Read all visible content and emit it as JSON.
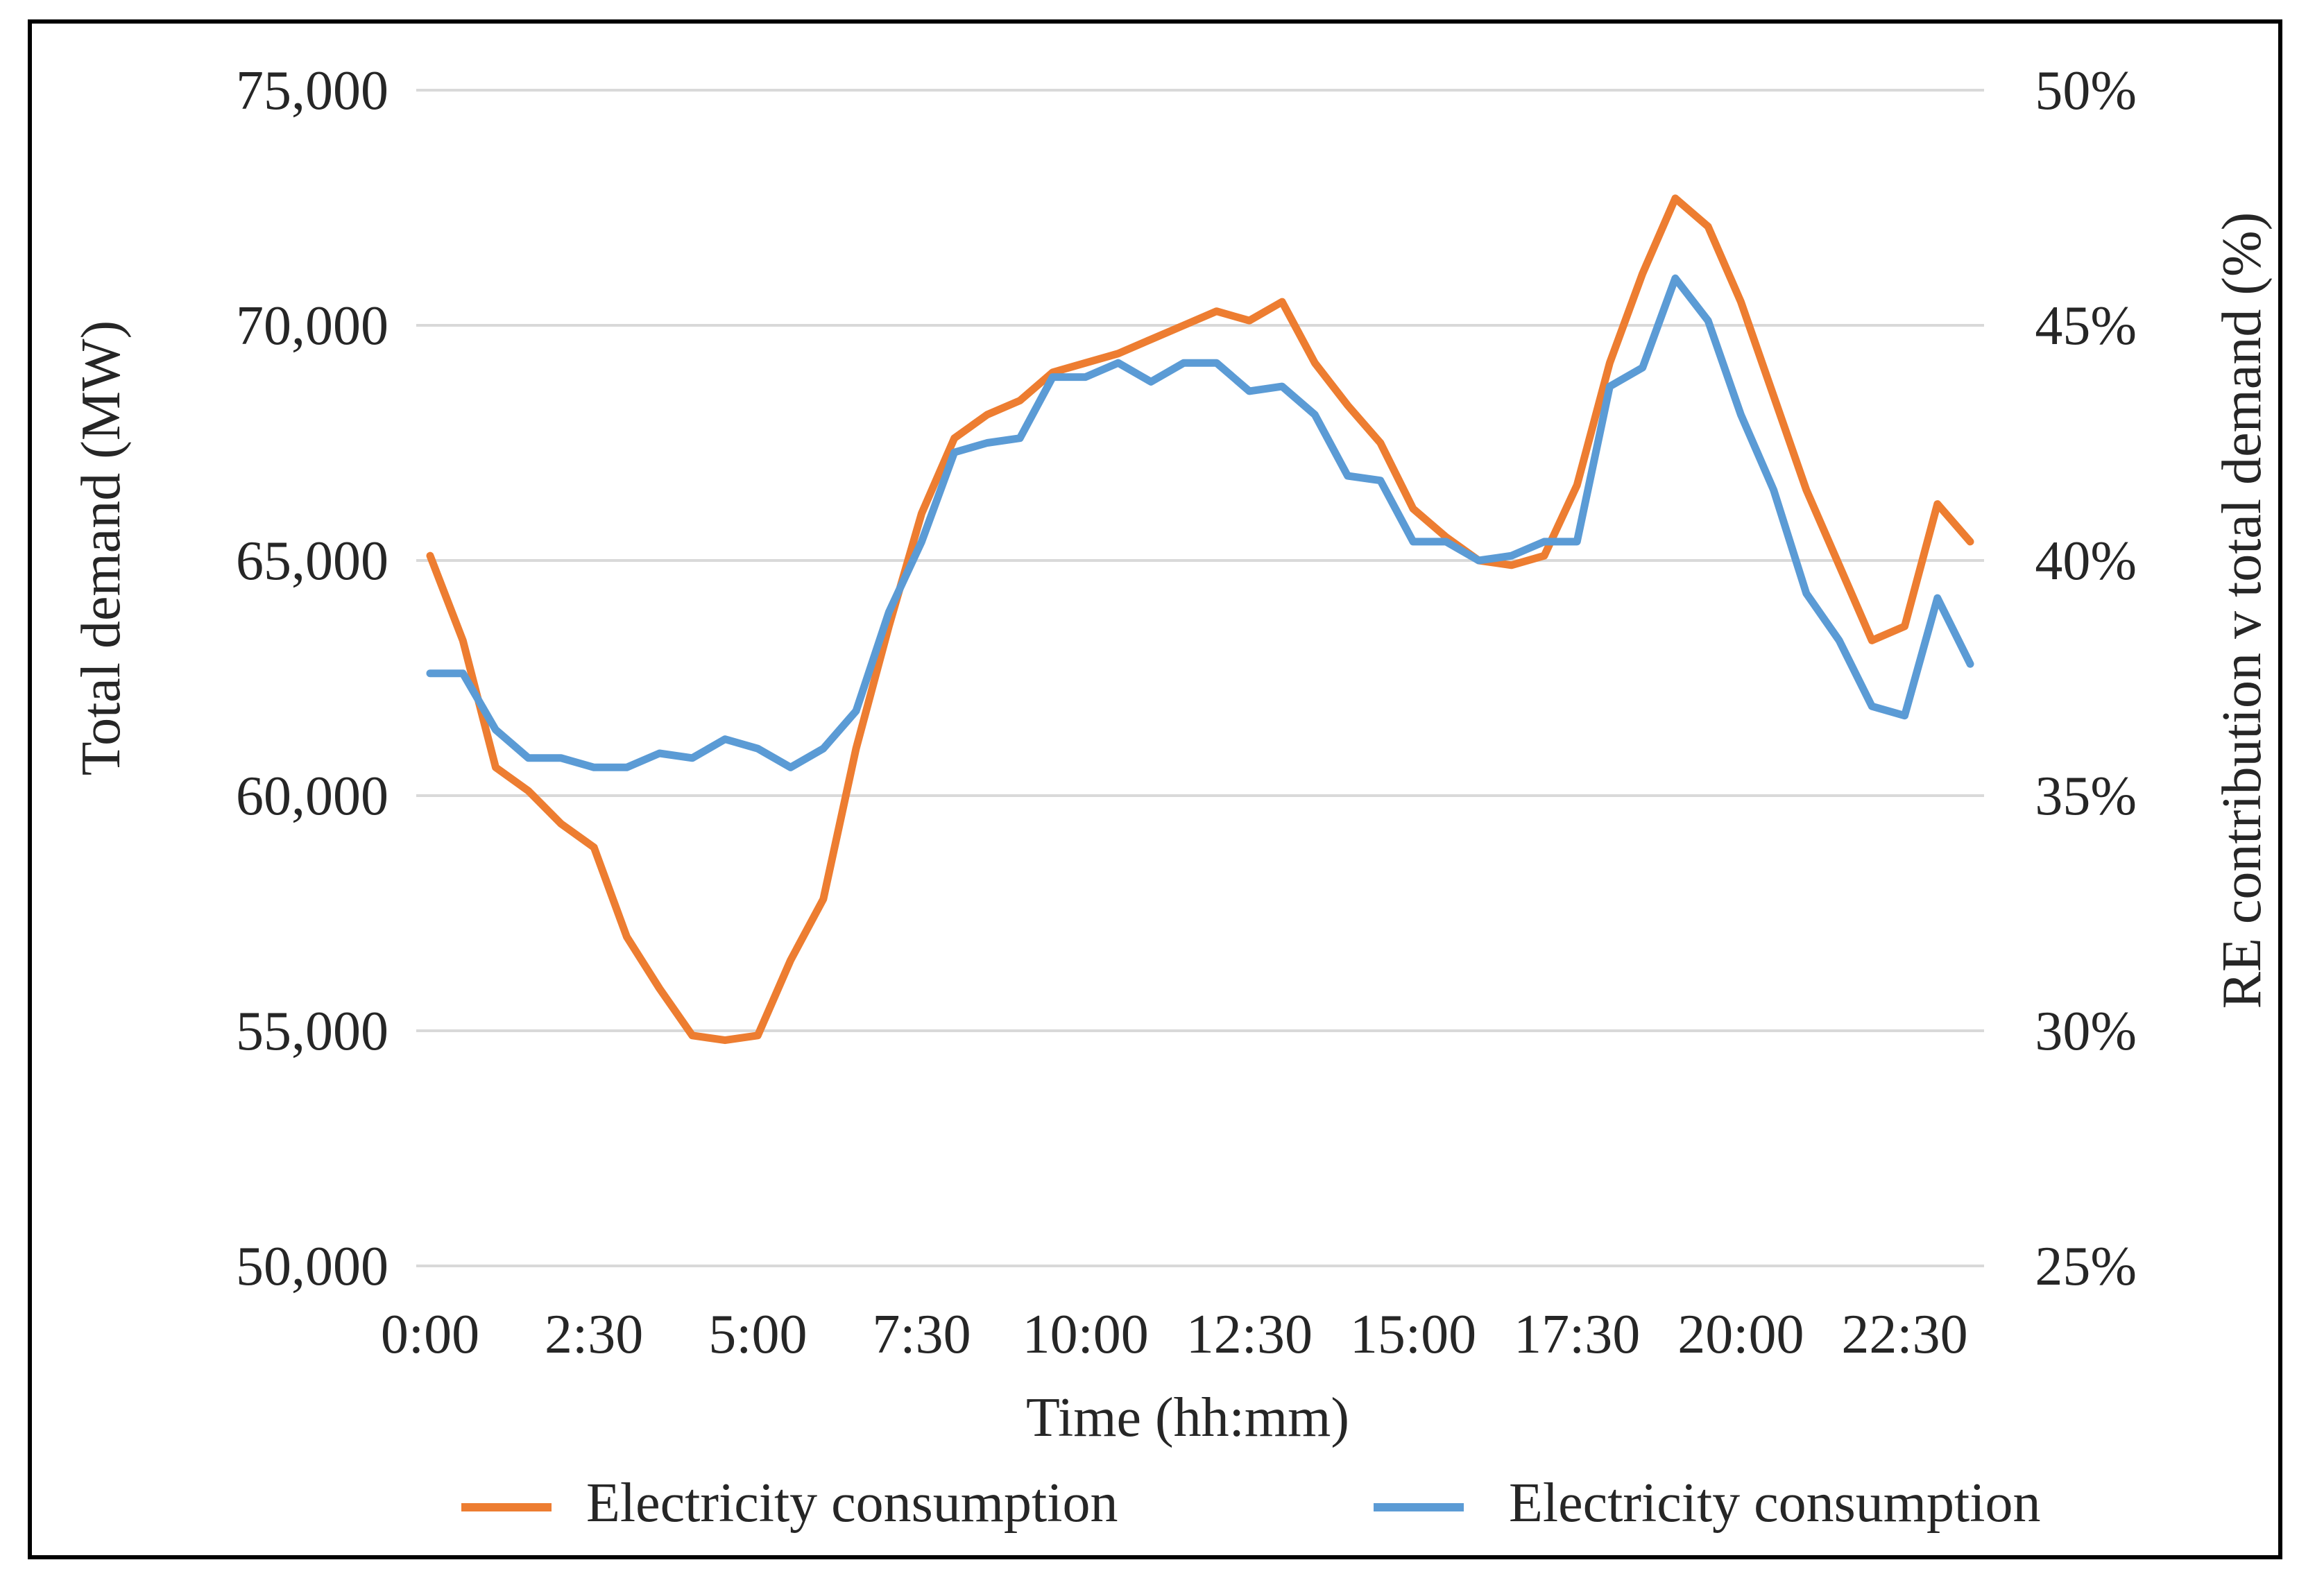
{
  "chart_data": {
    "type": "line",
    "title": "",
    "xlabel": "Time (hh:mm)",
    "ylabel": "Total demand (MW)",
    "y2label": "RE contribution v total demand (%)",
    "x_tick_labels": [
      "0:00",
      "2:30",
      "5:00",
      "7:30",
      "10:00",
      "12:30",
      "15:00",
      "17:30",
      "20:00",
      "22:30"
    ],
    "y_tick_labels": [
      "50,000",
      "55,000",
      "60,000",
      "65,000",
      "70,000",
      "75,000"
    ],
    "y2_tick_labels": [
      "25%",
      "30%",
      "35%",
      "40%",
      "45%",
      "50%"
    ],
    "ylim": [
      50000,
      75000
    ],
    "y2lim": [
      25,
      50
    ],
    "x_count": 48,
    "legend_position": "bottom",
    "grid": true,
    "series": [
      {
        "name": "Electricity consumption",
        "axis": "left",
        "color": "#ED7D31",
        "values": [
          65100,
          63300,
          60600,
          60100,
          59400,
          58900,
          57000,
          55900,
          54900,
          54800,
          54900,
          56500,
          57800,
          61000,
          63600,
          66000,
          67600,
          68100,
          68400,
          69000,
          69200,
          69400,
          69700,
          70000,
          70300,
          70100,
          70500,
          69200,
          68300,
          67500,
          66100,
          65500,
          65000,
          64900,
          65100,
          66600,
          69200,
          71100,
          72700,
          72100,
          70500,
          68500,
          66500,
          64900,
          63300,
          63600,
          66200,
          65400
        ]
      },
      {
        "name": "Electricity consumption",
        "axis": "right",
        "color": "#5B9BD5",
        "values": [
          37.6,
          37.6,
          36.4,
          35.8,
          35.8,
          35.6,
          35.6,
          35.9,
          35.8,
          36.2,
          36.0,
          35.6,
          36.0,
          36.8,
          38.9,
          40.4,
          42.3,
          42.5,
          42.6,
          43.9,
          43.9,
          44.2,
          43.8,
          44.2,
          44.2,
          43.6,
          43.7,
          43.1,
          41.8,
          41.7,
          40.4,
          40.4,
          40.0,
          40.1,
          40.4,
          40.4,
          43.7,
          44.1,
          46.0,
          45.1,
          43.1,
          41.5,
          39.3,
          38.3,
          36.9,
          36.7,
          39.2,
          37.8
        ]
      }
    ]
  }
}
